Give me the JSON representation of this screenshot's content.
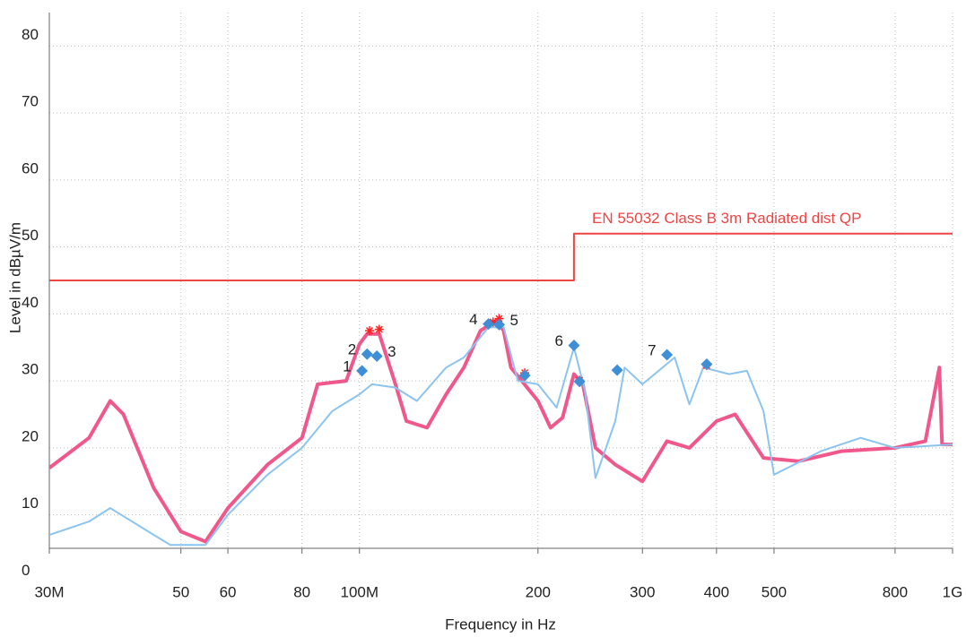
{
  "chart_data": {
    "type": "line",
    "x_label": "Frequency in Hz",
    "y_label": "Level in dBµV/m",
    "annotation": "EN 55032 Class B 3m Radiated dist QP",
    "xscale": "log",
    "grid": true,
    "xlim": [
      30000000,
      1000000000
    ],
    "ylim": [
      5,
      85
    ],
    "xticks": [
      {
        "value": 30000000,
        "label": "30M"
      },
      {
        "value": 50000000,
        "label": "50"
      },
      {
        "value": 60000000,
        "label": "60"
      },
      {
        "value": 80000000,
        "label": "80"
      },
      {
        "value": 100000000,
        "label": "100M"
      },
      {
        "value": 200000000,
        "label": "200"
      },
      {
        "value": 300000000,
        "label": "300"
      },
      {
        "value": 400000000,
        "label": "400"
      },
      {
        "value": 500000000,
        "label": "500"
      },
      {
        "value": 800000000,
        "label": "800"
      },
      {
        "value": 1000000000,
        "label": "1G"
      }
    ],
    "yticks": [
      0,
      10,
      20,
      30,
      40,
      50,
      60,
      70,
      80
    ],
    "series": [
      {
        "color": "#f0588c",
        "kind": "trace",
        "x": [
          30000000.0,
          35000000.0,
          38000000.0,
          40000000.0,
          45000000.0,
          50000000.0,
          55000000.0,
          60000000.0,
          70000000.0,
          80000000.0,
          85000000.0,
          95000000.0,
          100000000.0,
          103000000.0,
          108000000.0,
          115000000.0,
          120000000.0,
          130000000.0,
          140000000.0,
          150000000.0,
          160000000.0,
          170000000.0,
          175000000.0,
          180000000.0,
          200000000.0,
          210000000.0,
          220000000.0,
          230000000.0,
          238000000.0,
          250000000.0,
          270000000.0,
          300000000.0,
          330000000.0,
          360000000.0,
          400000000.0,
          430000000.0,
          480000000.0,
          550000000.0,
          650000000.0,
          800000000.0,
          900000000.0,
          950000000.0,
          960000000.0,
          1000000000.0
        ],
        "values": [
          17,
          21.5,
          27,
          25,
          14,
          7.5,
          6,
          11,
          17.5,
          21.5,
          29.5,
          30,
          35.5,
          37,
          37,
          29.5,
          24,
          23,
          28,
          32,
          37.5,
          39,
          37.5,
          32,
          27,
          23,
          24.5,
          31,
          29.5,
          20,
          17.5,
          15,
          21,
          20,
          24,
          25,
          18.5,
          18,
          19.5,
          20,
          21,
          32,
          20.5,
          20.5
        ]
      },
      {
        "color": "#8cc4f0",
        "kind": "trace",
        "x": [
          30000000.0,
          35000000.0,
          38000000.0,
          45000000.0,
          48000000.0,
          55000000.0,
          60000000.0,
          70000000.0,
          80000000.0,
          90000000.0,
          100000000.0,
          105000000.0,
          115000000.0,
          125000000.0,
          140000000.0,
          150000000.0,
          165000000.0,
          175000000.0,
          185000000.0,
          200000000.0,
          215000000.0,
          230000000.0,
          240000000.0,
          250000000.0,
          270000000.0,
          280000000.0,
          300000000.0,
          340000000.0,
          360000000.0,
          380000000.0,
          420000000.0,
          450000000.0,
          480000000.0,
          500000000.0,
          600000000.0,
          700000000.0,
          800000000.0,
          1000000000.0
        ],
        "values": [
          7,
          9,
          11,
          7,
          5.5,
          5.5,
          10,
          16,
          20,
          25.5,
          28,
          29.5,
          29,
          27,
          32,
          33.5,
          38,
          38,
          30,
          29.5,
          26,
          35,
          28.5,
          15.5,
          24,
          32,
          29.5,
          33.5,
          26.5,
          32,
          31,
          31.5,
          25.5,
          16,
          19.5,
          21.5,
          20,
          20.5
        ]
      },
      {
        "name": "EN 55032 Class B 3m Radiated dist QP",
        "color": "#ee4444",
        "kind": "limit",
        "x": [
          30000000.0,
          230000000.0,
          230000000.0,
          1000000000.0
        ],
        "values": [
          45,
          45,
          52,
          52
        ]
      },
      {
        "color": "#ff2020",
        "kind": "star",
        "x": [
          104000000.0,
          108000000.0,
          168000000.0,
          172000000.0,
          190000000.0,
          235000000.0,
          385000000.0
        ],
        "values": [
          37.5,
          37.7,
          38.8,
          39.3,
          31.2,
          30.1,
          32.3
        ]
      },
      {
        "color": "#3f8fd6",
        "kind": "diamond",
        "x": [
          101000000.0,
          103000000.0,
          107000000.0,
          165000000.0,
          172000000.0,
          230000000.0,
          330000000.0,
          190000000.0,
          235000000.0,
          272000000.0,
          385000000.0
        ],
        "values": [
          31.5,
          34,
          33.7,
          38.5,
          38.4,
          35.3,
          33.9,
          30.8,
          29.9,
          31.6,
          32.5
        ],
        "labels": [
          "1",
          "2",
          "3",
          "4",
          "5",
          "6",
          "7",
          null,
          null,
          null,
          null
        ]
      }
    ]
  }
}
